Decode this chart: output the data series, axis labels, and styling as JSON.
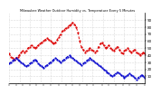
{
  "title": "Milwaukee Weather Outdoor Humidity vs. Temperature Every 5 Minutes",
  "background_color": "#ffffff",
  "grid_color": "#bbbbbb",
  "red_color": "#dd0000",
  "blue_color": "#0000cc",
  "red_data": [
    42,
    38,
    36,
    34,
    36,
    38,
    40,
    44,
    46,
    44,
    46,
    50,
    52,
    54,
    52,
    50,
    52,
    54,
    56,
    58,
    60,
    62,
    64,
    62,
    60,
    58,
    56,
    58,
    62,
    66,
    70,
    74,
    76,
    78,
    80,
    82,
    84,
    86,
    84,
    80,
    72,
    60,
    52,
    48,
    44,
    46,
    48,
    50,
    48,
    46,
    44,
    46,
    52,
    56,
    58,
    54,
    50,
    52,
    54,
    50,
    48,
    46,
    50,
    52,
    48,
    44,
    42,
    46,
    48,
    50,
    46,
    44,
    46,
    48,
    44,
    42,
    40,
    42,
    44,
    42
  ],
  "blue_data": [
    28,
    30,
    32,
    34,
    36,
    34,
    32,
    30,
    28,
    26,
    24,
    26,
    28,
    30,
    32,
    34,
    32,
    28,
    26,
    24,
    22,
    24,
    26,
    28,
    30,
    32,
    34,
    36,
    34,
    32,
    30,
    32,
    34,
    36,
    38,
    40,
    38,
    36,
    34,
    32,
    30,
    28,
    26,
    28,
    30,
    32,
    34,
    36,
    34,
    32,
    30,
    28,
    26,
    24,
    22,
    20,
    18,
    16,
    14,
    12,
    10,
    12,
    14,
    16,
    14,
    12,
    10,
    8,
    10,
    12,
    14,
    12,
    10,
    8,
    6,
    8,
    10,
    12,
    10,
    8
  ],
  "ylim": [
    0,
    100
  ],
  "yticks": [
    10,
    20,
    30,
    40,
    50,
    60,
    70,
    80,
    90
  ],
  "n_points": 80
}
